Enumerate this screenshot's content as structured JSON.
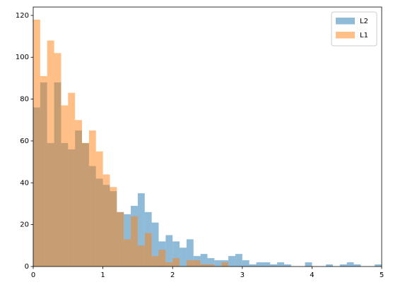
{
  "chart_data": {
    "type": "histogram",
    "bins": [
      0,
      0.1,
      0.2,
      0.3,
      0.4,
      0.5,
      0.6,
      0.7,
      0.8,
      0.9,
      1.0,
      1.1,
      1.2,
      1.3,
      1.4,
      1.5,
      1.6,
      1.7,
      1.8,
      1.9,
      2.0,
      2.1,
      2.2,
      2.3,
      2.4,
      2.5,
      2.6,
      2.7,
      2.8,
      2.9,
      3.0,
      3.1,
      3.2,
      3.3,
      3.4,
      3.5,
      3.6,
      3.7,
      3.8,
      3.9,
      4.0,
      4.1,
      4.2,
      4.3,
      4.4,
      4.5,
      4.6,
      4.7,
      4.8,
      4.9,
      5.0
    ],
    "series": [
      {
        "name": "L2",
        "color": "#1f77b4",
        "alpha": 0.5,
        "values": [
          76,
          88,
          59,
          88,
          59,
          56,
          65,
          59,
          48,
          42,
          39,
          36,
          26,
          25,
          29,
          35,
          26,
          21,
          12,
          15,
          12,
          9,
          13,
          5,
          6,
          4,
          3,
          3,
          5,
          6,
          3,
          1,
          2,
          2,
          1,
          2,
          1,
          0,
          0,
          2,
          0,
          0,
          1,
          0,
          1,
          2,
          1,
          0,
          0,
          1
        ]
      },
      {
        "name": "L1",
        "color": "#ff7f0e",
        "alpha": 0.5,
        "values": [
          118,
          91,
          108,
          102,
          77,
          83,
          70,
          59,
          65,
          55,
          44,
          38,
          26,
          13,
          24,
          10,
          16,
          5,
          8,
          2,
          4,
          0,
          3,
          3,
          1,
          1,
          0,
          2,
          0,
          0,
          0,
          0,
          0,
          0,
          0,
          0,
          0,
          0,
          0,
          0,
          0,
          0,
          0,
          0,
          0,
          0,
          0,
          0,
          0,
          0
        ]
      }
    ],
    "xlim": [
      0,
      5
    ],
    "xticks": [
      0,
      1,
      2,
      3,
      4,
      5
    ],
    "ylim": [
      0,
      124
    ],
    "yticks": [
      0,
      20,
      40,
      60,
      80,
      100,
      120
    ],
    "legend": "upper right"
  }
}
